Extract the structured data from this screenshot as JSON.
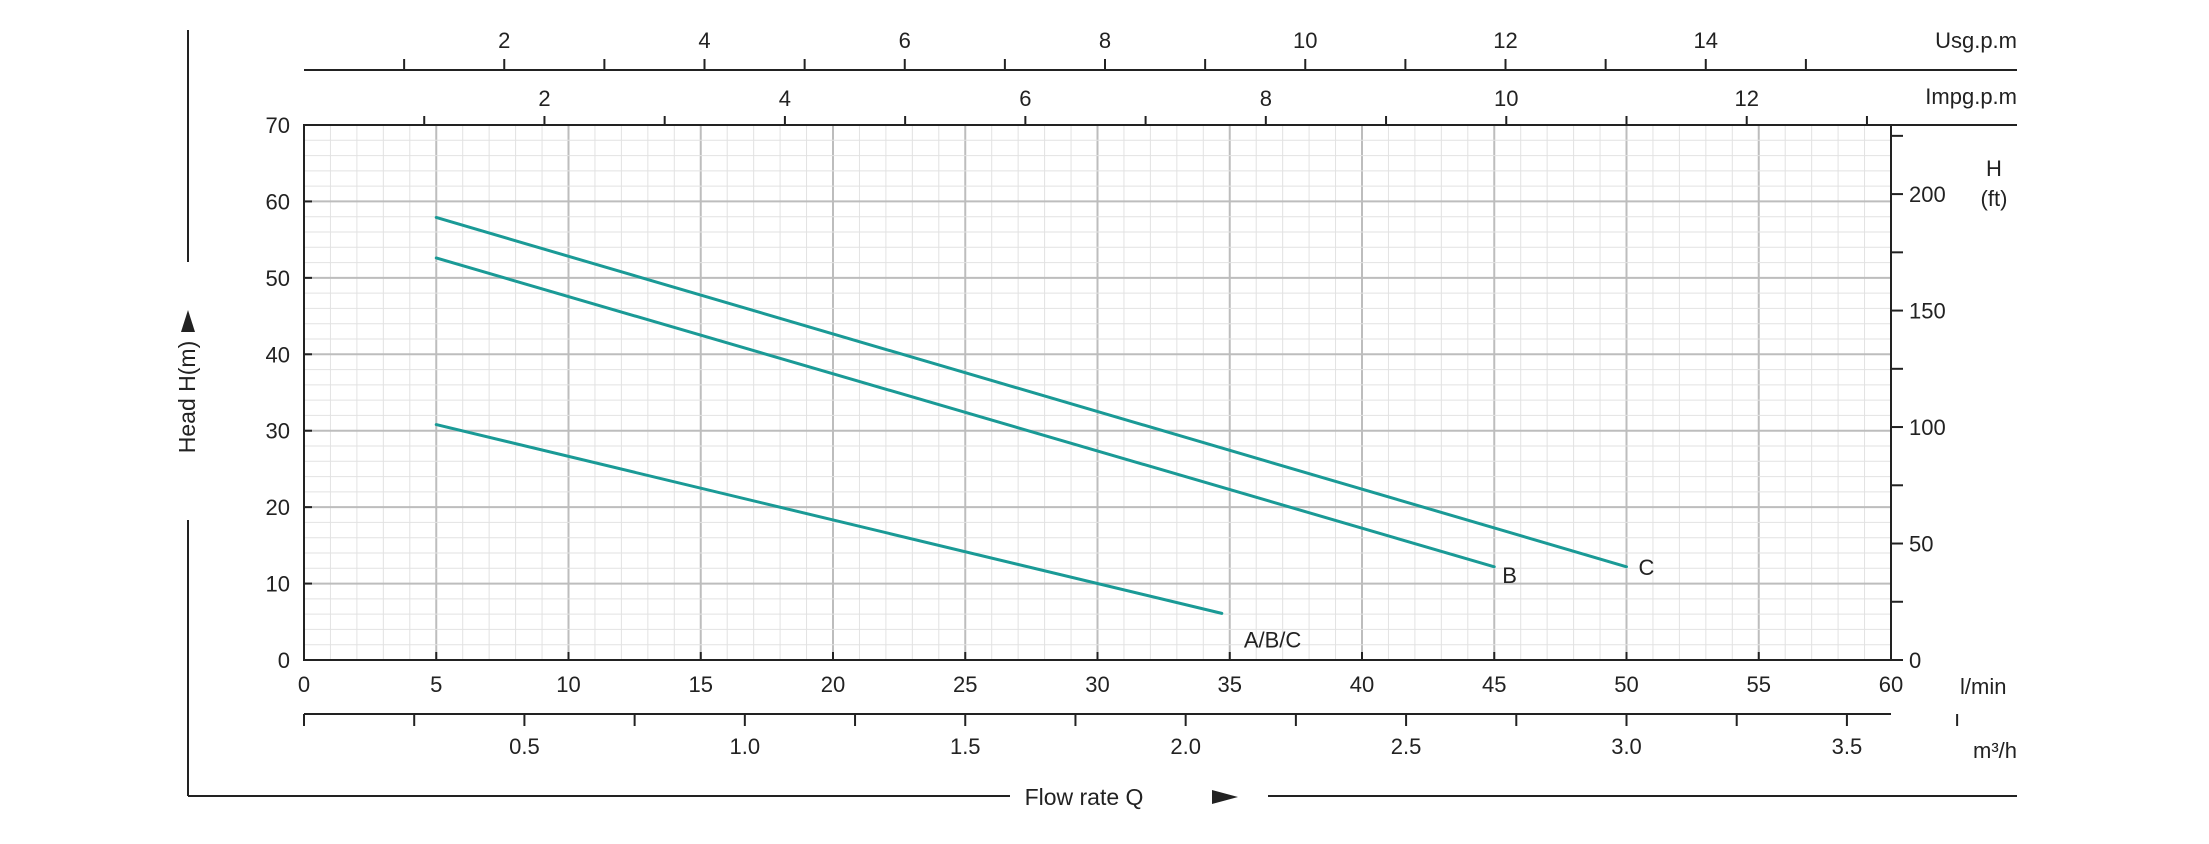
{
  "chart_data": {
    "type": "line",
    "title": "",
    "xlabel": "Flow rate Q",
    "ylabel": "Head H(m)",
    "xunit": "l/min",
    "xlim": [
      0,
      60
    ],
    "ylim": [
      0,
      70
    ],
    "grid": true,
    "x_ticks": [
      "0",
      "5",
      "10",
      "15",
      "20",
      "25",
      "30",
      "35",
      "40",
      "45",
      "50",
      "55",
      "60"
    ],
    "y_ticks": [
      "0",
      "10",
      "20",
      "30",
      "40",
      "50",
      "60",
      "70"
    ],
    "right_axis": {
      "title_line1": "H",
      "title_line2": "(ft)",
      "lim": [
        0,
        229.66
      ],
      "ticks": [
        "0",
        "50",
        "100",
        "150",
        "200"
      ]
    },
    "top_axis_usgpm": {
      "unit": "Usg.p.m",
      "lim": [
        0,
        15.85
      ],
      "ticks": [
        "2",
        "4",
        "6",
        "8",
        "10",
        "12",
        "14"
      ]
    },
    "top_axis_impgpm": {
      "unit": "Impg.p.m",
      "lim": [
        0,
        13.2
      ],
      "ticks": [
        "2",
        "4",
        "6",
        "8",
        "10",
        "12"
      ]
    },
    "bottom_axis_m3h": {
      "unit": "m³/h",
      "lim": [
        0,
        3.6
      ],
      "ticks": [
        "0.5",
        "1.0",
        "1.5",
        "2.0",
        "2.5",
        "3.0",
        "3.5"
      ]
    },
    "series": [
      {
        "name": "A/B/C",
        "color": "#1a9a96",
        "x": [
          5,
          34.7
        ],
        "y": [
          30.8,
          6.1
        ]
      },
      {
        "name": "B",
        "color": "#1a9a96",
        "x": [
          5,
          45
        ],
        "y": [
          52.6,
          12.2
        ]
      },
      {
        "name": "C",
        "color": "#1a9a96",
        "x": [
          5,
          50
        ],
        "y": [
          57.9,
          12.2
        ]
      }
    ]
  }
}
